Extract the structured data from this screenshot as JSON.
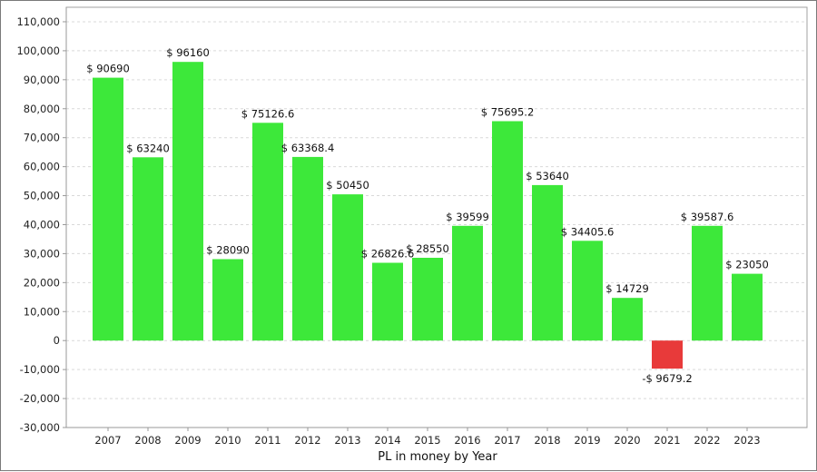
{
  "chart_data": {
    "type": "bar",
    "xlabel": "PL in money by Year",
    "ylabel": "",
    "ylim": [
      -30000,
      115000
    ],
    "yticks": [
      -30000,
      -20000,
      -10000,
      0,
      10000,
      20000,
      30000,
      40000,
      50000,
      60000,
      70000,
      80000,
      90000,
      100000,
      110000
    ],
    "ytick_labels": [
      "-30,000",
      "-20,000",
      "-10,000",
      "0",
      "10,000",
      "20,000",
      "30,000",
      "40,000",
      "50,000",
      "60,000",
      "70,000",
      "80,000",
      "90,000",
      "100,000",
      "110,000"
    ],
    "categories": [
      "2007",
      "2008",
      "2009",
      "2010",
      "2011",
      "2012",
      "2013",
      "2014",
      "2015",
      "2016",
      "2017",
      "2018",
      "2019",
      "2020",
      "2021",
      "2022",
      "2023"
    ],
    "values": [
      90690,
      63240,
      96160,
      28090,
      75126.6,
      63368.4,
      50450,
      26826.6,
      28550,
      39599,
      75695.2,
      53640,
      34405.6,
      14729,
      -9679.2,
      39587.6,
      23050
    ],
    "data_labels": [
      "$ 90690",
      "$ 63240",
      "$ 96160",
      "$ 28090",
      "$ 75126.6",
      "$ 63368.4",
      "$ 50450",
      "$ 26826.6",
      "$ 28550",
      "$ 39599",
      "$ 75695.2",
      "$ 53640",
      "$ 34405.6",
      "$ 14729",
      "-$ 9679.2",
      "$ 39587.6",
      "$ 23050"
    ],
    "grid": true,
    "colors": {
      "positive": "#3de83a",
      "negative": "#e83a3a",
      "grid": "#d9d9d9",
      "axis": "#999999"
    }
  }
}
